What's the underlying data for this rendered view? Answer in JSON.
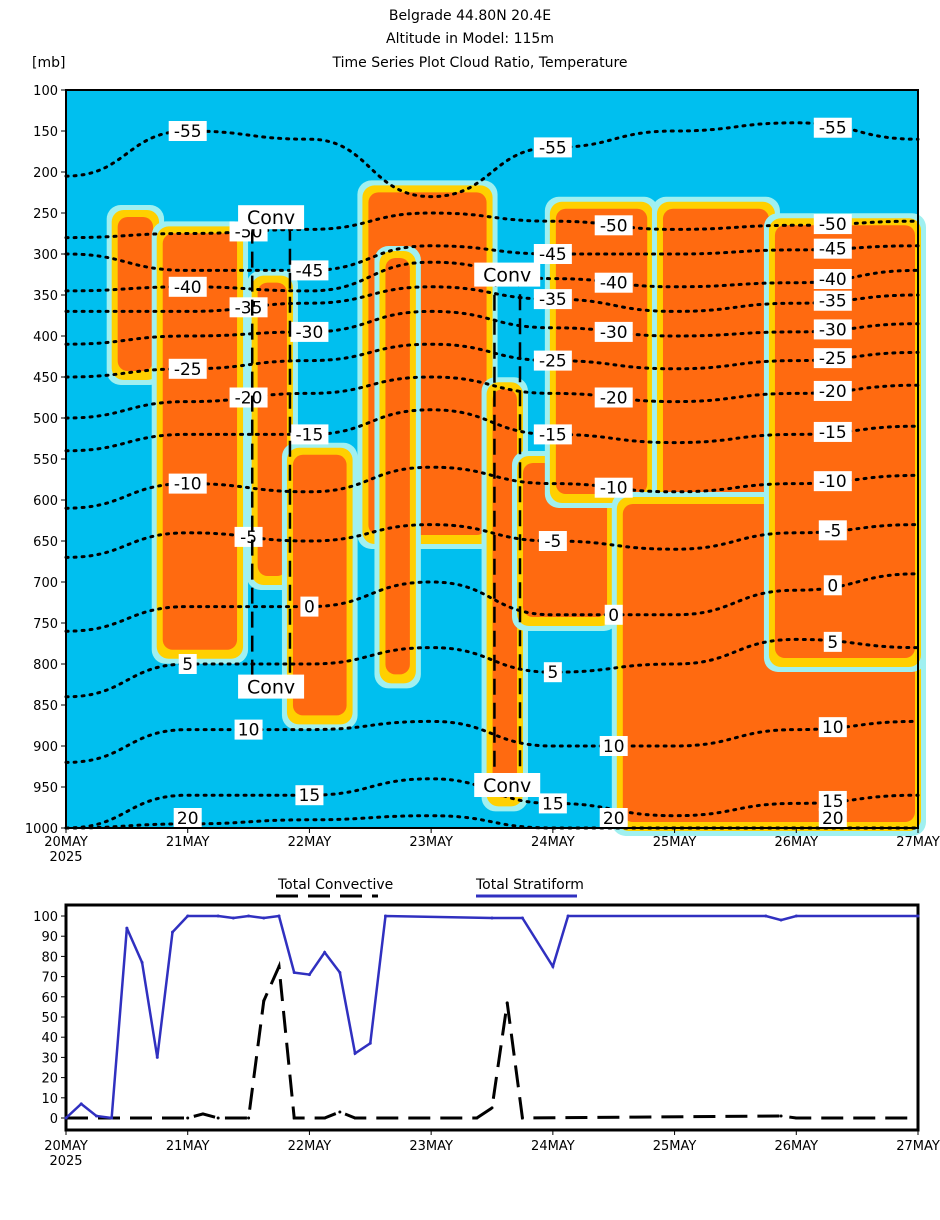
{
  "title_lines": [
    "Belgrade   44.80N 20.4E",
    "Altitude in Model: 115m",
    "Time Series Plot Cloud Ratio, Temperature"
  ],
  "unit_label": "[mb]",
  "chart_data": [
    {
      "type": "heatmap",
      "title": "Time Series Plot Cloud Ratio, Temperature",
      "ylabel": "[mb]",
      "ylim": [
        1000,
        100
      ],
      "yticks": [
        "100",
        "150",
        "200",
        "250",
        "300",
        "350",
        "400",
        "450",
        "500",
        "550",
        "600",
        "650",
        "700",
        "750",
        "800",
        "850",
        "900",
        "950",
        "1000"
      ],
      "xlim_days": [
        0,
        7
      ],
      "xticks": [
        "20MAY",
        "21MAY",
        "22MAY",
        "23MAY",
        "24MAY",
        "25MAY",
        "26MAY",
        "27MAY"
      ],
      "xsub": "2025",
      "colors": {
        "background": "#00bfef",
        "halo": "#a0f0f0",
        "mid": "#ffd000",
        "core": "#ff6a10"
      },
      "cloud_regions": [
        {
          "d0": 0.4,
          "d1": 0.74,
          "p0": 250,
          "p1": 450
        },
        {
          "d0": 0.77,
          "d1": 1.43,
          "p0": 270,
          "p1": 790
        },
        {
          "d0": 1.55,
          "d1": 1.84,
          "p0": 330,
          "p1": 700
        },
        {
          "d0": 1.84,
          "d1": 2.33,
          "p0": 540,
          "p1": 870
        },
        {
          "d0": 2.46,
          "d1": 3.48,
          "p0": 220,
          "p1": 650
        },
        {
          "d0": 2.6,
          "d1": 2.85,
          "p0": 300,
          "p1": 820
        },
        {
          "d0": 3.48,
          "d1": 3.73,
          "p0": 460,
          "p1": 970
        },
        {
          "d0": 3.73,
          "d1": 4.47,
          "p0": 550,
          "p1": 750
        },
        {
          "d0": 4.0,
          "d1": 4.8,
          "p0": 240,
          "p1": 600
        },
        {
          "d0": 4.88,
          "d1": 5.8,
          "p0": 240,
          "p1": 980
        },
        {
          "d0": 4.55,
          "d1": 7.0,
          "p0": 600,
          "p1": 1000
        },
        {
          "d0": 5.8,
          "d1": 7.0,
          "p0": 260,
          "p1": 800
        }
      ],
      "convective_boxes": [
        {
          "d0": 1.53,
          "d1": 1.84,
          "p0": 260,
          "p1": 830,
          "labels": [
            "Conv",
            "Conv"
          ]
        },
        {
          "d0": 3.52,
          "d1": 3.73,
          "p0": 330,
          "p1": 950,
          "labels": [
            "Conv",
            "Conv"
          ]
        }
      ],
      "isotherms_days": [
        0,
        1,
        2,
        3,
        4,
        5,
        6,
        7
      ],
      "isotherms": [
        {
          "level": "-55",
          "p": [
            205,
            150,
            160,
            230,
            170,
            150,
            140,
            160
          ]
        },
        {
          "level": "-50",
          "p": [
            280,
            275,
            270,
            250,
            260,
            270,
            265,
            260
          ]
        },
        {
          "level": "-45",
          "p": [
            300,
            320,
            320,
            290,
            300,
            300,
            295,
            290
          ]
        },
        {
          "level": "-40",
          "p": [
            345,
            340,
            345,
            310,
            330,
            340,
            335,
            320
          ]
        },
        {
          "level": "-35",
          "p": [
            370,
            370,
            360,
            340,
            355,
            370,
            360,
            350
          ]
        },
        {
          "level": "-30",
          "p": [
            410,
            400,
            395,
            370,
            390,
            400,
            395,
            385
          ]
        },
        {
          "level": "-25",
          "p": [
            450,
            440,
            430,
            410,
            430,
            440,
            430,
            420
          ]
        },
        {
          "level": "-20",
          "p": [
            500,
            480,
            470,
            450,
            470,
            480,
            470,
            460
          ]
        },
        {
          "level": "-15",
          "p": [
            540,
            520,
            520,
            490,
            520,
            530,
            520,
            510
          ]
        },
        {
          "level": "-10",
          "p": [
            610,
            580,
            590,
            560,
            580,
            590,
            580,
            570
          ]
        },
        {
          "level": "-5",
          "p": [
            670,
            640,
            650,
            630,
            650,
            660,
            640,
            630
          ]
        },
        {
          "level": "0",
          "p": [
            760,
            730,
            730,
            700,
            740,
            740,
            710,
            690
          ]
        },
        {
          "level": "5",
          "p": [
            840,
            800,
            800,
            780,
            810,
            800,
            770,
            780
          ]
        },
        {
          "level": "10",
          "p": [
            920,
            880,
            880,
            870,
            900,
            900,
            880,
            870
          ]
        },
        {
          "level": "15",
          "p": [
            1000,
            960,
            960,
            940,
            970,
            985,
            970,
            960
          ]
        },
        {
          "level": "20",
          "p": [
            1000,
            995,
            990,
            985,
            1000,
            1000,
            1000,
            1000
          ]
        }
      ]
    },
    {
      "type": "line",
      "ylim": [
        0,
        100
      ],
      "yticks": [
        "0",
        "10",
        "20",
        "30",
        "40",
        "50",
        "60",
        "70",
        "80",
        "90",
        "100"
      ],
      "xticks": [
        "20MAY",
        "21MAY",
        "22MAY",
        "23MAY",
        "24MAY",
        "25MAY",
        "26MAY",
        "27MAY"
      ],
      "xsub": "2025",
      "legend_position": "top",
      "series": [
        {
          "name": "Total Convective",
          "color": "#000000",
          "style": "dashed",
          "x": [
            0,
            1,
            1.125,
            1.25,
            1.5,
            1.625,
            1.75,
            1.875,
            2.125,
            2.25,
            2.375,
            3.375,
            3.5,
            3.625,
            3.75,
            5.875,
            6,
            7
          ],
          "y": [
            0,
            0,
            2,
            0,
            0,
            58,
            75,
            0,
            0,
            3,
            0,
            0,
            5,
            57,
            0,
            1,
            0,
            0
          ]
        },
        {
          "name": "Total Stratiform",
          "color": "#3030c0",
          "style": "solid",
          "x": [
            0,
            0.125,
            0.25,
            0.375,
            0.5,
            0.625,
            0.75,
            0.875,
            1,
            1.25,
            1.375,
            1.5,
            1.625,
            1.75,
            1.875,
            2,
            2.125,
            2.25,
            2.375,
            2.5,
            2.625,
            3.5,
            3.75,
            4,
            4.125,
            5.75,
            5.875,
            6,
            7
          ],
          "y": [
            0,
            7,
            1,
            0,
            94,
            77,
            30,
            92,
            100,
            100,
            99,
            100,
            99,
            100,
            72,
            71,
            82,
            72,
            32,
            37,
            100,
            99,
            99,
            75,
            100,
            100,
            98,
            100,
            100
          ]
        }
      ]
    }
  ]
}
